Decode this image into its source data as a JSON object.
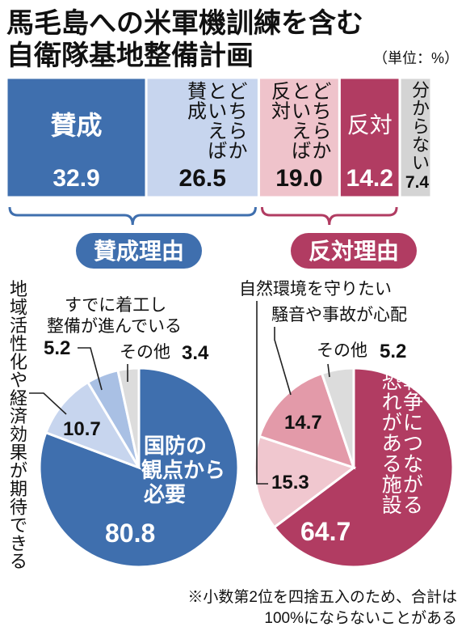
{
  "title_line1": "馬毛島への米軍機訓練を含む",
  "title_line2": "自衛隊基地整備計画",
  "unit": "（単位：%）",
  "footnote_line1": "※小数第2位を四捨五入のため、合計は",
  "footnote_line2": "100%にならないことがある",
  "colors": {
    "support_dark": "#3f6fae",
    "support_light": "#c7d5ee",
    "oppose_light": "#efc3cb",
    "oppose_dark": "#b13c62",
    "unknown": "#d4d4d4"
  },
  "chart_data": [
    {
      "type": "bar",
      "orientation": "horizontal-stacked",
      "categories": [
        "賛成",
        "どちらかといえば賛成",
        "どちらかといえば反対",
        "反対",
        "分からない"
      ],
      "values": [
        32.9,
        26.5,
        19.0,
        14.2,
        7.4
      ],
      "labels": [
        "32.9",
        "26.5",
        "19.0",
        "14.2",
        "7.4"
      ]
    },
    {
      "type": "pie",
      "title": "賛成理由",
      "slices": [
        {
          "label": "国防の観点から必要",
          "value": 80.8,
          "value_label": "80.8"
        },
        {
          "label": "地域活性化や経済効果が期待できる",
          "value": 10.7,
          "value_label": "10.7"
        },
        {
          "label": "すでに着工し整備が進んでいる",
          "value": 5.2,
          "value_label": "5.2"
        },
        {
          "label": "その他",
          "value": 3.4,
          "value_label": "3.4"
        }
      ]
    },
    {
      "type": "pie",
      "title": "反対理由",
      "slices": [
        {
          "label": "戦争につながる恐れがある施設",
          "value": 64.7,
          "value_label": "64.7"
        },
        {
          "label": "自然環境を守りたい",
          "value": 15.3,
          "value_label": "15.3"
        },
        {
          "label": "騒音や事故が心配",
          "value": 14.7,
          "value_label": "14.7"
        },
        {
          "label": "その他",
          "value": 5.2,
          "value_label": "5.2"
        }
      ]
    }
  ]
}
